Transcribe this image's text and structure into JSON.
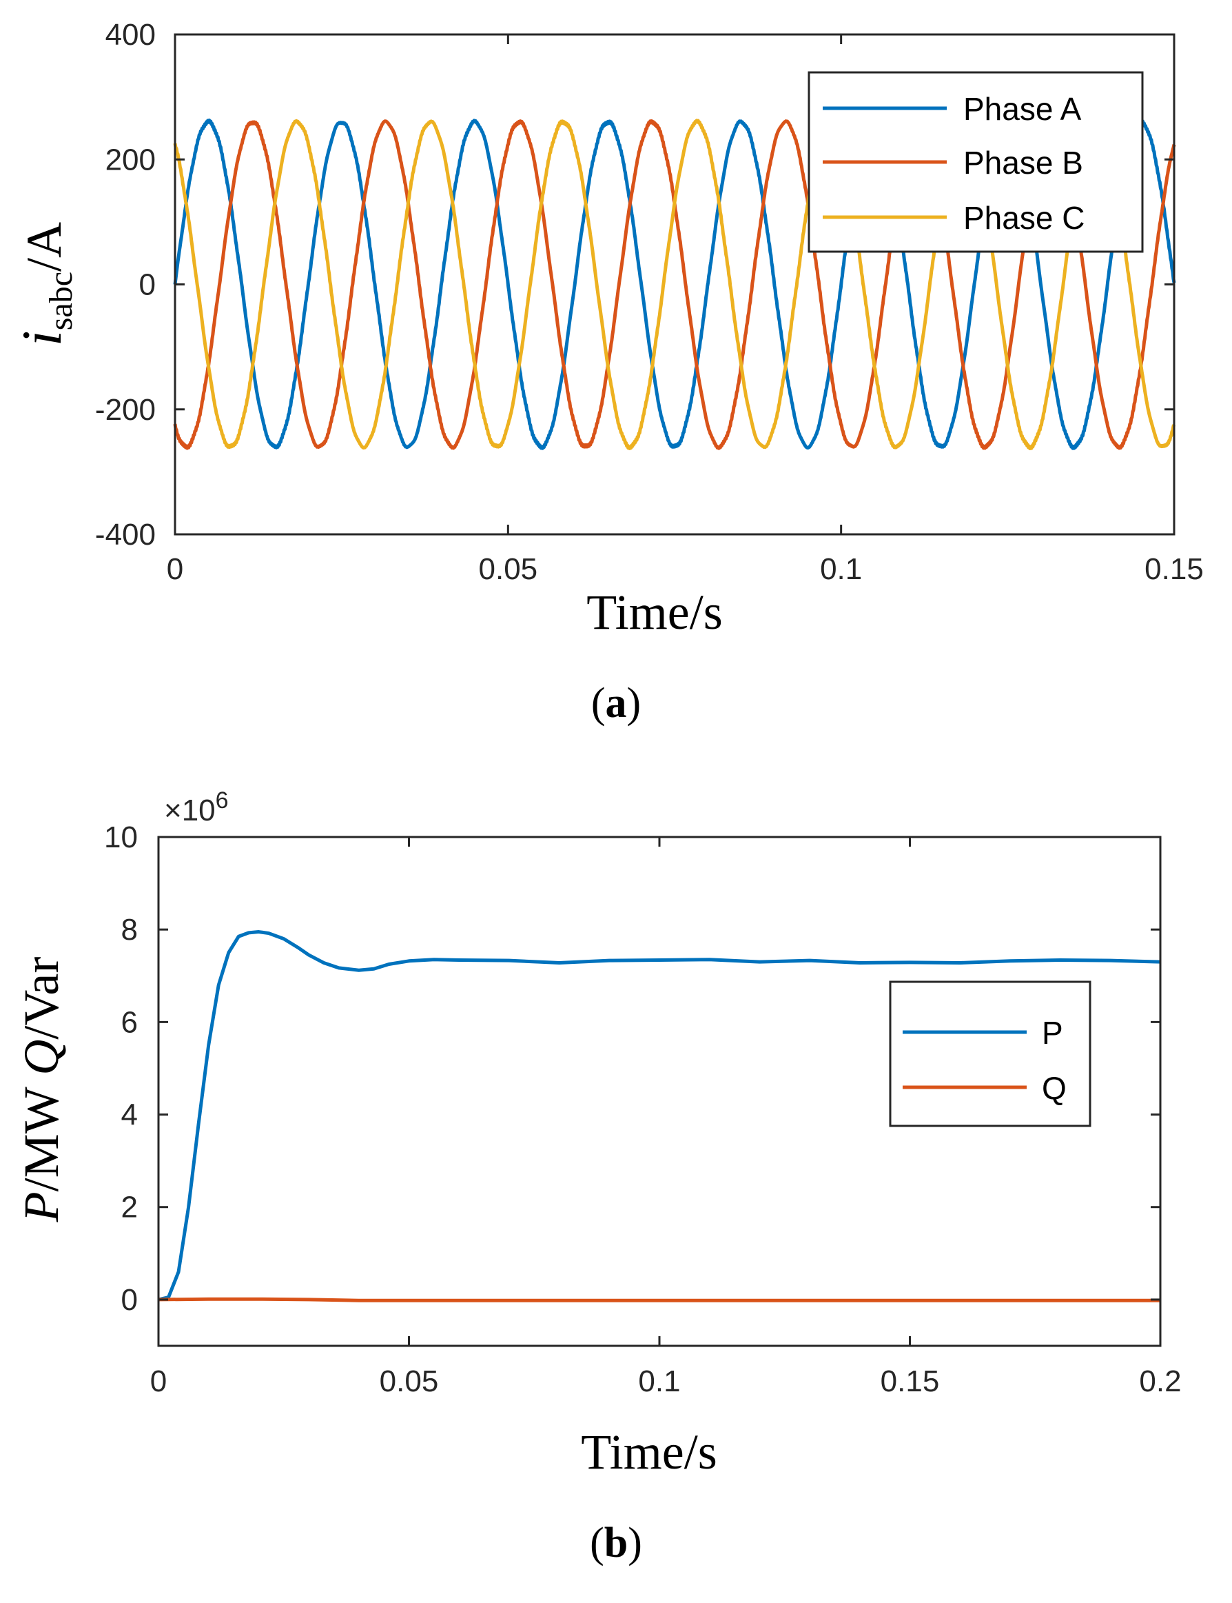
{
  "chart_data": [
    {
      "type": "line",
      "panel": "a",
      "caption_open": "(",
      "caption_letter": "a",
      "caption_close": ")",
      "xlabel": "Time/s",
      "ylabel_symbol": "i",
      "ylabel_subscript": "sabc",
      "ylabel_unit": "/A",
      "xlim": [
        0,
        0.15
      ],
      "ylim": [
        -400,
        400
      ],
      "xticks": [
        0,
        0.05,
        0.1,
        0.15
      ],
      "xtick_labels": [
        "0",
        "0.05",
        "0.1",
        "0.15"
      ],
      "yticks": [
        -400,
        -200,
        0,
        200,
        400
      ],
      "ytick_labels": [
        "-400",
        "-200",
        "0",
        "200",
        "400"
      ],
      "legend_position": "top-right",
      "series": [
        {
          "name": "Phase A",
          "color": "#0072BD",
          "amplitude": 260,
          "frequency_hz": 50,
          "phase_deg": 0
        },
        {
          "name": "Phase B",
          "color": "#D95319",
          "amplitude": 260,
          "frequency_hz": 50,
          "phase_deg": -120
        },
        {
          "name": "Phase C",
          "color": "#EDB120",
          "amplitude": 260,
          "frequency_hz": 50,
          "phase_deg": 120
        }
      ]
    },
    {
      "type": "line",
      "panel": "b",
      "caption_open": "(",
      "caption_letter": "b",
      "caption_close": ")",
      "xlabel": "Time/s",
      "ylabel": "P/MW Q/Var",
      "ylabel_p": "P",
      "ylabel_p_unit": "/MW ",
      "ylabel_q": "Q",
      "ylabel_q_unit": "/Var",
      "exponent_base": "×10",
      "exponent_power": "6",
      "xlim": [
        0,
        0.2
      ],
      "ylim": [
        -1,
        10
      ],
      "xticks": [
        0,
        0.05,
        0.1,
        0.15,
        0.2
      ],
      "xtick_labels": [
        "0",
        "0.05",
        "0.1",
        "0.15",
        "0.2"
      ],
      "yticks": [
        0,
        2,
        4,
        6,
        8,
        10
      ],
      "ytick_labels": [
        "0",
        "2",
        "4",
        "6",
        "8",
        "10"
      ],
      "legend_position": "center-right",
      "series": [
        {
          "name": "P",
          "color": "#0072BD",
          "x": [
            0,
            0.002,
            0.004,
            0.006,
            0.008,
            0.01,
            0.012,
            0.014,
            0.016,
            0.018,
            0.02,
            0.022,
            0.025,
            0.028,
            0.03,
            0.033,
            0.036,
            0.04,
            0.043,
            0.046,
            0.05,
            0.055,
            0.06,
            0.07,
            0.08,
            0.09,
            0.1,
            0.11,
            0.12,
            0.13,
            0.14,
            0.15,
            0.16,
            0.17,
            0.18,
            0.19,
            0.2
          ],
          "values": [
            0,
            0.05,
            0.6,
            2.0,
            3.8,
            5.5,
            6.8,
            7.5,
            7.85,
            7.93,
            7.95,
            7.92,
            7.8,
            7.6,
            7.45,
            7.28,
            7.17,
            7.12,
            7.15,
            7.25,
            7.32,
            7.35,
            7.34,
            7.33,
            7.28,
            7.33,
            7.34,
            7.35,
            7.3,
            7.33,
            7.28,
            7.29,
            7.28,
            7.32,
            7.34,
            7.33,
            7.3
          ]
        },
        {
          "name": "Q",
          "color": "#D95319",
          "x": [
            0,
            0.01,
            0.02,
            0.03,
            0.04,
            0.05,
            0.1,
            0.15,
            0.2
          ],
          "values": [
            0,
            0.01,
            0.01,
            0.0,
            -0.02,
            -0.02,
            -0.02,
            -0.02,
            -0.02
          ]
        }
      ]
    }
  ]
}
